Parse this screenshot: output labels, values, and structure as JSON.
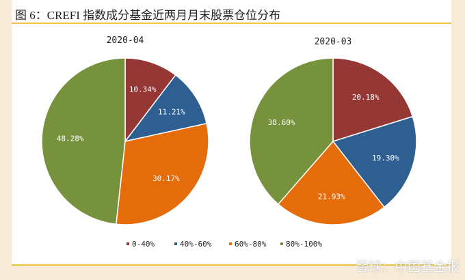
{
  "title": "图 6：CREFI 指数成分基金近两月月末股票仓位分布",
  "watermark": "雪球：中国基金报",
  "chart_data": [
    {
      "type": "pie",
      "title": "2020-04",
      "categories": [
        "0-40%",
        "40%-60%",
        "60%-80%",
        "80%-100%"
      ],
      "values": [
        10.34,
        11.21,
        30.17,
        48.28
      ],
      "labels": [
        "10.34%",
        "11.21%",
        "30.17%",
        "48.28%"
      ]
    },
    {
      "type": "pie",
      "title": "2020-03",
      "categories": [
        "0-40%",
        "40%-60%",
        "60%-80%",
        "80%-100%"
      ],
      "values": [
        20.18,
        19.3,
        21.93,
        38.6
      ],
      "labels": [
        "20.18%",
        "19.30%",
        "21.93%",
        "38.60%"
      ]
    }
  ],
  "legend": {
    "placement": "bottom",
    "items": [
      "0-40%",
      "40%-60%",
      "60%-80%",
      "80%-100%"
    ]
  },
  "colors": [
    "#953735",
    "#2f5f91",
    "#e46c0a",
    "#76923c"
  ]
}
